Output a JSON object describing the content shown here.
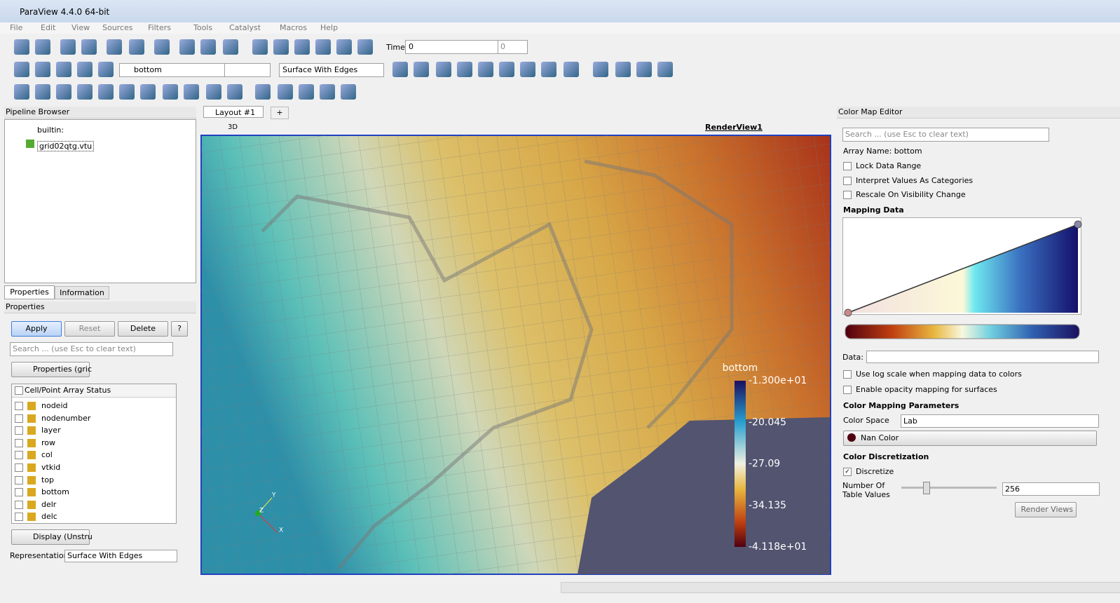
{
  "window": {
    "title": "ParaView 4.4.0 64-bit"
  },
  "menu": [
    "File",
    "Edit",
    "View",
    "Sources",
    "Filters",
    "Tools",
    "Catalyst",
    "Macros",
    "Help"
  ],
  "toolbar": {
    "time_label": "Time:",
    "time_value": "0",
    "time_step": "0",
    "array": "bottom",
    "representation": "Surface With Edges"
  },
  "pipeline": {
    "title": "Pipeline Browser",
    "items": [
      "builtin:",
      "grid02qtg.vtu"
    ]
  },
  "tabs": [
    "Properties",
    "Information"
  ],
  "properties": {
    "title": "Properties",
    "buttons": [
      "Apply",
      "Reset",
      "Delete",
      "?"
    ],
    "search": "Search ... (use Esc to clear text)",
    "section": "Properties (gric",
    "array_header": "Cell/Point Array Status",
    "arrays": [
      "nodeid",
      "nodenumber",
      "layer",
      "row",
      "col",
      "vtkid",
      "top",
      "bottom",
      "delr",
      "delc"
    ],
    "display": "Display (Unstru",
    "representation_label": "Representation",
    "representation": "Surface With Edges"
  },
  "layout": {
    "tab": "Layout #1",
    "add": "+",
    "mode": "3D",
    "view": "RenderView1"
  },
  "legend": {
    "title": "bottom",
    "labels": [
      "-1.300e+01",
      "-20.045",
      "-27.09",
      "-34.135",
      "-4.118e+01"
    ]
  },
  "axes": [
    "Y",
    "Z",
    "X"
  ],
  "color_map_editor": {
    "title": "Color Map Editor",
    "search": "Search ... (use Esc to clear text)",
    "array_name": "Array Name: bottom",
    "options": [
      "Lock Data Range",
      "Interpret Values As Categories",
      "Rescale On Visibility Change"
    ],
    "mapping_title": "Mapping Data",
    "data_label": "Data:",
    "mapping_options": [
      "Use log scale when mapping data to colors",
      "Enable opacity mapping for surfaces"
    ],
    "params_title": "Color Mapping Parameters",
    "color_space_label": "Color Space",
    "color_space": "Lab",
    "nan_color": "Nan Color",
    "discretization_title": "Color Discretization",
    "discretize": "Discretize",
    "table_values_label": "Number Of Table Values",
    "table_values": "256",
    "render_views": "Render Views"
  }
}
